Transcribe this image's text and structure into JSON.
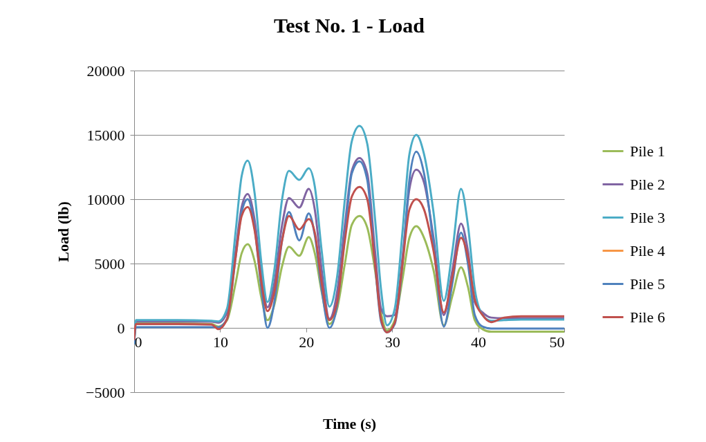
{
  "chart_data": {
    "type": "line",
    "title": "Test No. 1 - Load",
    "xlabel": "Time (s)",
    "ylabel": "Load (lb)",
    "x": [
      0,
      0.2,
      5,
      9,
      9.8,
      10.8,
      11.8,
      12.5,
      13.2,
      14,
      14.8,
      15.5,
      16.3,
      17.2,
      18,
      19.2,
      20.3,
      21,
      21.8,
      22.7,
      23.6,
      24.5,
      25.3,
      26.2,
      27.1,
      28,
      28.7,
      29.4,
      30.3,
      31.2,
      32,
      32.8,
      33.7,
      34.8,
      36,
      37,
      38,
      38.8,
      39.6,
      40.5,
      41.5,
      43,
      45,
      50
    ],
    "xlim": [
      0,
      50
    ],
    "xticks": [
      0,
      10,
      20,
      30,
      40,
      50
    ],
    "ylim": [
      -5000,
      20000
    ],
    "yticks": [
      -5000,
      0,
      5000,
      10000,
      15000,
      20000
    ],
    "grid": "y",
    "legend": "right",
    "series": [
      {
        "name": "Pile 1",
        "color": "#9bbb59",
        "values": [
          -1200,
          350,
          350,
          300,
          100,
          600,
          3500,
          5800,
          6500,
          5200,
          2300,
          600,
          1800,
          4800,
          6300,
          5600,
          7050,
          5800,
          2800,
          300,
          1500,
          5000,
          8000,
          8700,
          7800,
          4500,
          1200,
          -200,
          600,
          3800,
          7000,
          7900,
          7000,
          4500,
          200,
          2500,
          4700,
          3200,
          600,
          -100,
          -300,
          -300,
          -300,
          -300
        ]
      },
      {
        "name": "Pile 2",
        "color": "#8064a2",
        "values": [
          -1200,
          500,
          500,
          480,
          400,
          1200,
          6000,
          9400,
          10400,
          8400,
          4000,
          1600,
          3500,
          8000,
          10100,
          9350,
          10800,
          9200,
          4500,
          700,
          2800,
          8000,
          12200,
          13200,
          12000,
          6000,
          1500,
          900,
          1000,
          5500,
          10800,
          12300,
          11300,
          7000,
          1000,
          4500,
          8100,
          6000,
          2000,
          1200,
          800,
          750,
          750,
          750
        ]
      },
      {
        "name": "Pile 3",
        "color": "#4bacc6",
        "values": [
          -1200,
          600,
          600,
          550,
          500,
          1500,
          7500,
          11800,
          13000,
          10500,
          5000,
          2000,
          4500,
          10000,
          12200,
          11500,
          12400,
          11000,
          6000,
          1650,
          4000,
          10000,
          14500,
          15700,
          14300,
          8500,
          3000,
          200,
          1500,
          7500,
          13500,
          15000,
          13500,
          9000,
          2100,
          6000,
          10800,
          8000,
          3000,
          1000,
          550,
          600,
          650,
          650
        ]
      },
      {
        "name": "Pile 4",
        "color": "#f79646",
        "values": [
          null,
          null,
          null,
          null,
          null,
          null,
          null,
          null,
          null,
          null,
          null,
          null,
          null,
          null,
          null,
          null,
          null,
          null,
          null,
          null,
          null,
          null,
          null,
          null,
          null,
          null,
          null,
          null,
          null,
          null,
          null,
          null,
          null,
          null,
          null,
          null,
          null,
          null,
          null,
          null,
          null,
          null,
          null,
          null
        ]
      },
      {
        "name": "Pile 5",
        "color": "#4f81bd",
        "values": [
          -1200,
          50,
          50,
          50,
          50,
          700,
          5500,
          9000,
          10000,
          7800,
          3000,
          0,
          2000,
          6800,
          9000,
          6800,
          8900,
          7200,
          3000,
          0,
          1800,
          7200,
          12000,
          12950,
          11500,
          5000,
          500,
          -350,
          300,
          5000,
          11500,
          13700,
          12000,
          6500,
          100,
          3500,
          7400,
          5000,
          1000,
          100,
          -50,
          -50,
          -50,
          -50
        ]
      },
      {
        "name": "Pile 6",
        "color": "#c0504d",
        "values": [
          -900,
          300,
          300,
          250,
          -100,
          700,
          5500,
          8700,
          9400,
          7600,
          3500,
          1300,
          2800,
          6800,
          8700,
          7650,
          8450,
          7400,
          3500,
          600,
          2000,
          6800,
          10200,
          10950,
          10000,
          5000,
          700,
          -350,
          400,
          5000,
          9200,
          10000,
          9200,
          6000,
          1200,
          4000,
          7000,
          5500,
          2200,
          1000,
          450,
          800,
          900,
          900
        ]
      }
    ]
  }
}
